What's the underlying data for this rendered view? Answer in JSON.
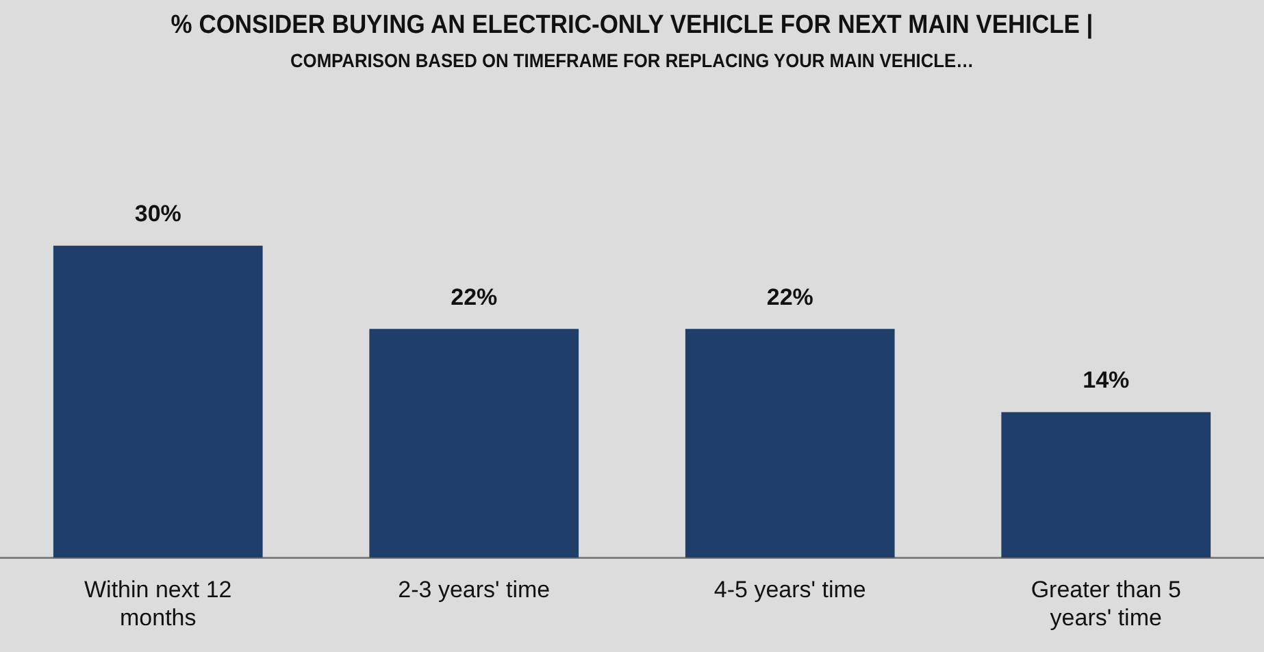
{
  "chart_data": {
    "type": "bar",
    "title": "% CONSIDER BUYING AN ELECTRIC-ONLY VEHICLE FOR NEXT MAIN VEHICLE |",
    "subtitle": "COMPARISON BASED ON TIMEFRAME FOR REPLACING YOUR MAIN VEHICLE…",
    "categories": [
      "Within next 12 months",
      "2-3 years' time",
      "4-5 years' time",
      "Greater than 5 years' time"
    ],
    "values": [
      30,
      22,
      22,
      14
    ],
    "color": "#1f3f6a",
    "value_labels": [
      "30%",
      "22%",
      "22%",
      "14%"
    ],
    "grid": false,
    "legend": false
  }
}
